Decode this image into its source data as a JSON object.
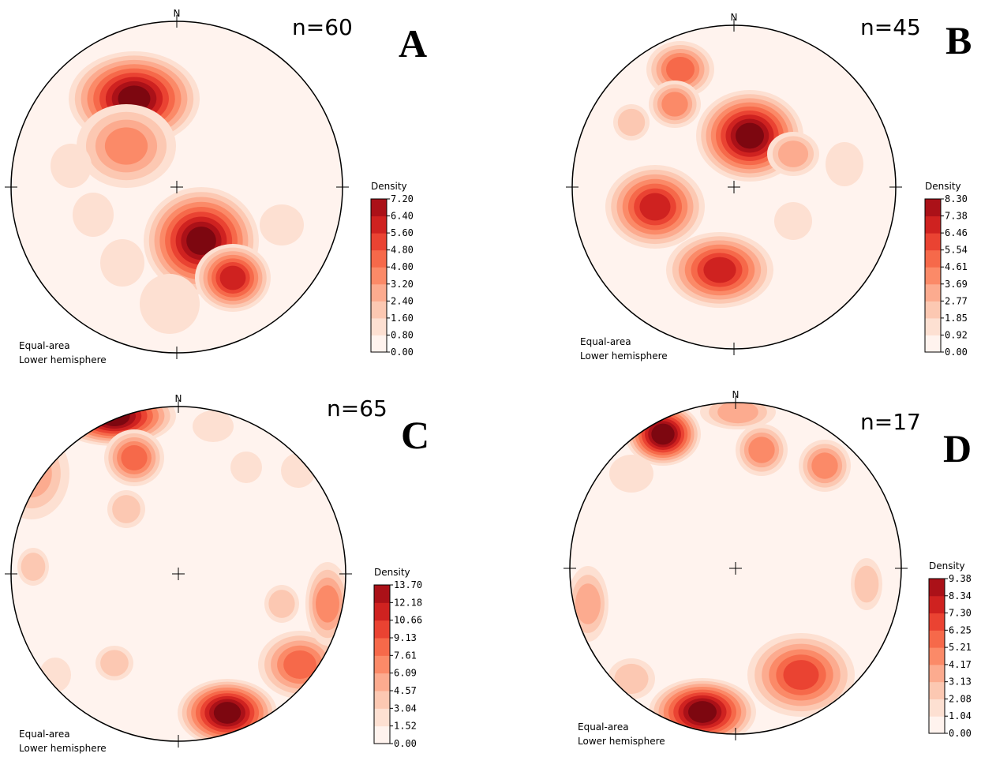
{
  "panels": [
    {
      "letter": "A",
      "n": "n=60",
      "north": "N",
      "projection": [
        "Equal-area",
        "Lower hemisphere"
      ],
      "colorbar": {
        "title": "Density",
        "ticks": [
          "0.00",
          "0.80",
          "1.60",
          "2.40",
          "3.20",
          "4.00",
          "4.80",
          "5.60",
          "6.40",
          "7.20"
        ]
      }
    },
    {
      "letter": "B",
      "n": "n=45",
      "north": "N",
      "projection": [
        "Equal-area",
        "Lower hemisphere"
      ],
      "colorbar": {
        "title": "Density",
        "ticks": [
          "0.00",
          "0.92",
          "1.85",
          "2.77",
          "3.69",
          "4.61",
          "5.54",
          "6.46",
          "7.38",
          "8.30"
        ]
      }
    },
    {
      "letter": "C",
      "n": "n=65",
      "north": "N",
      "projection": [
        "Equal-area",
        "Lower hemisphere"
      ],
      "colorbar": {
        "title": "Density",
        "ticks": [
          "0.00",
          "1.52",
          "3.04",
          "4.57",
          "6.09",
          "7.61",
          "9.13",
          "10.66",
          "12.18",
          "13.70"
        ]
      }
    },
    {
      "letter": "D",
      "n": "n=17",
      "north": "N",
      "projection": [
        "Equal-area",
        "Lower hemisphere"
      ],
      "colorbar": {
        "title": "Density",
        "ticks": [
          "0.00",
          "1.04",
          "2.08",
          "3.13",
          "4.17",
          "5.21",
          "6.25",
          "7.30",
          "8.34",
          "9.38"
        ]
      }
    }
  ]
}
